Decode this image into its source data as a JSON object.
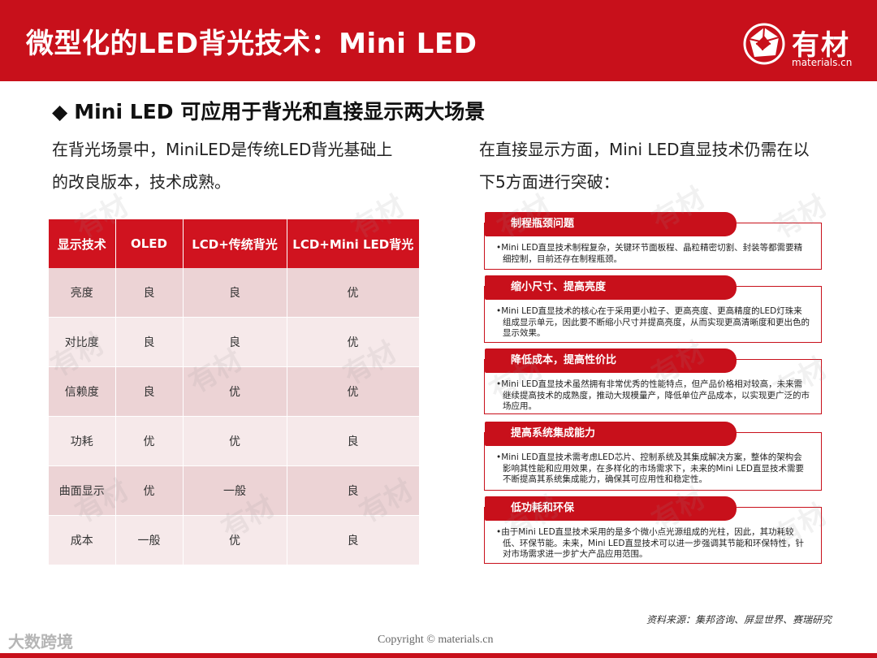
{
  "header": {
    "title": "微型化的LED背光技术：Mini LED",
    "logo_name": "有材",
    "logo_sub": "materials.cn"
  },
  "section_title": "Mini LED 可应用于背光和直接显示两大场景",
  "left_para": [
    "在背光场景中，MiniLED是传统LED背光基础上",
    "的改良版本，技术成熟。"
  ],
  "right_para": [
    "在直接显示方面，Mini LED直显技术仍需在以",
    "下5方面进行突破："
  ],
  "table": {
    "headers": [
      "显示技术",
      "OLED",
      "LCD+传统背光",
      "LCD+Mini LED背光"
    ],
    "rows": [
      [
        "亮度",
        "良",
        "良",
        "优"
      ],
      [
        "对比度",
        "良",
        "良",
        "优"
      ],
      [
        "信赖度",
        "良",
        "优",
        "优"
      ],
      [
        "功耗",
        "优",
        "优",
        "良"
      ],
      [
        "曲面显示",
        "优",
        "一般",
        "良"
      ],
      [
        "成本",
        "一般",
        "优",
        "良"
      ]
    ]
  },
  "cards": [
    {
      "title": "制程瓶颈问题",
      "body": "•Mini LED直显技术制程复杂，关键环节面板程、晶粒精密切割、封装等都需要精细控制，目前还存在制程瓶颈。"
    },
    {
      "title": "缩小尺寸、提高亮度",
      "body": "•Mini LED直显技术的核心在于采用更小粒子、更高亮度、更高精度的LED灯珠来组成显示单元，因此要不断缩小尺寸并提高亮度，从而实现更高清晰度和更出色的显示效果。"
    },
    {
      "title": "降低成本，提高性价比",
      "body": "•Mini LED直显技术虽然拥有非常优秀的性能特点，但产品价格相对较高，未来需继续提高技术的成熟度，推动大规模量产，降低单位产品成本，以实现更广泛的市场应用。"
    },
    {
      "title": "提高系统集成能力",
      "body": "•Mini LED直显技术需考虑LED芯片、控制系统及其集成解决方案，整体的架构会影响其性能和应用效果，在多样化的市场需求下，未来的Mini LED直显技术需要不断提高其系统集成能力，确保其可应用性和稳定性。"
    },
    {
      "title": "低功耗和环保",
      "body": "•由于Mini LED直显技术采用的是多个微小点光源组成的光柱，因此，其功耗较低、环保节能。未来，Mini LED直显技术可以进一步强调其节能和环保特性，针对市场需求进一步扩大产品应用范围。"
    }
  ],
  "source": "资料来源：集邦咨询、屏显世界、赛瑞研究",
  "copyright": "Copyright © materials.cn",
  "watermark_brand": "大数跨境"
}
